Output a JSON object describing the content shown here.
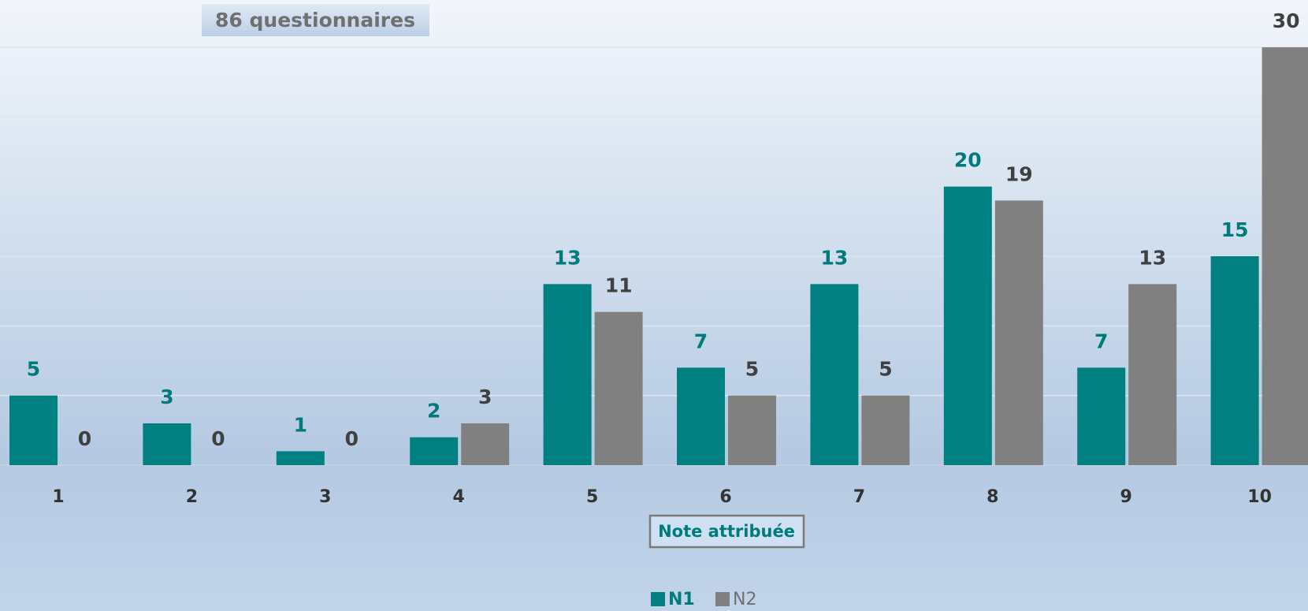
{
  "chart_data": {
    "type": "bar",
    "title": "86 questionnaires",
    "x_label": "Note attribuée",
    "categories": [
      "1",
      "2",
      "3",
      "4",
      "5",
      "6",
      "7",
      "8",
      "9",
      "10"
    ],
    "series": [
      {
        "name": "N1",
        "color": "#008080",
        "values": [
          5,
          3,
          1,
          2,
          13,
          7,
          13,
          20,
          7,
          15
        ]
      },
      {
        "name": "N2",
        "color": "#808080",
        "values": [
          0,
          0,
          0,
          3,
          11,
          5,
          5,
          19,
          13,
          30
        ]
      }
    ],
    "ylim": [
      0,
      30
    ],
    "yticks": [
      0,
      5,
      10,
      15,
      20,
      25,
      30
    ],
    "grid": true
  }
}
